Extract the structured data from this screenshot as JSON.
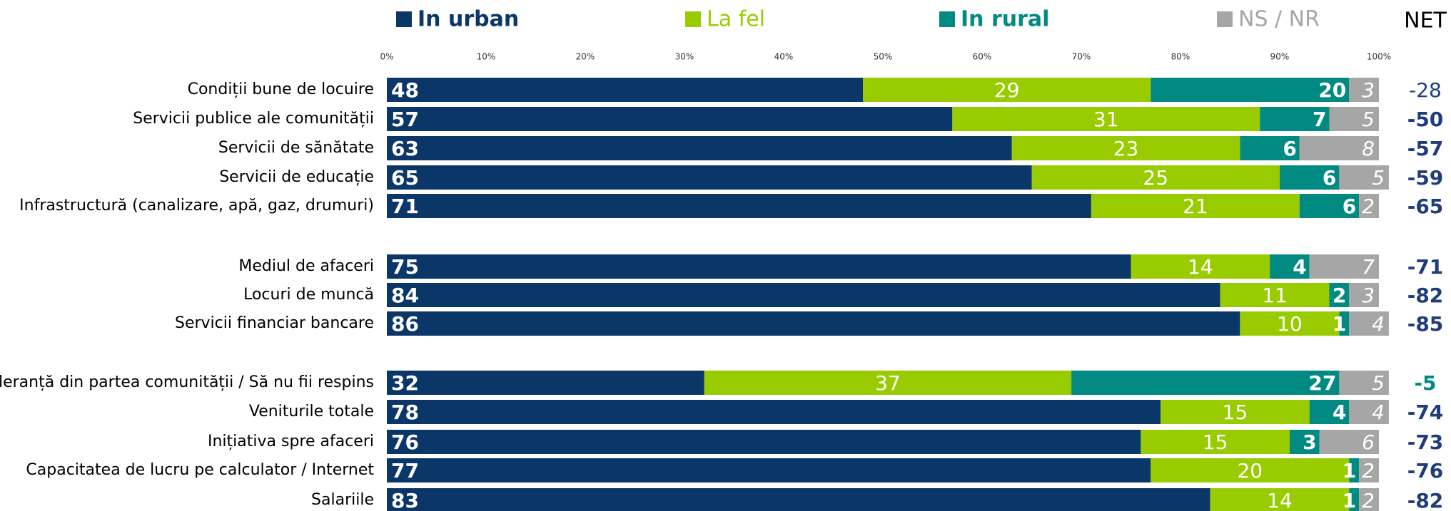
{
  "chart_data": {
    "type": "stacked-bar-horizontal",
    "categories": [
      "Condiții bune de locuire",
      "Servicii publice ale comunității",
      "Servicii de sănătate",
      "Servicii de educație",
      "Infrastructură (canalizare, apă, gaz, drumuri)",
      "Mediul de afaceri",
      "Locuri de muncă",
      "Servicii financiar bancare",
      "Toleranță din partea comunității / Să nu fii respins",
      "Veniturile totale",
      "Inițiativa spre afaceri",
      "Capacitatea de lucru pe calculator / Internet",
      "Salariile"
    ],
    "series": [
      {
        "name": "In urban",
        "color": "#0b3768",
        "values": [
          48,
          57,
          63,
          65,
          71,
          75,
          84,
          86,
          32,
          78,
          76,
          77,
          83
        ]
      },
      {
        "name": "La fel",
        "color": "#99cc00",
        "values": [
          29,
          31,
          23,
          25,
          21,
          14,
          11,
          10,
          37,
          15,
          15,
          20,
          14
        ]
      },
      {
        "name": "In rural",
        "color": "#008a82",
        "values": [
          20,
          7,
          6,
          6,
          6,
          4,
          2,
          1,
          27,
          4,
          3,
          1,
          1
        ]
      },
      {
        "name": "NS / NR",
        "color": "#a6a6a6",
        "values": [
          3,
          5,
          8,
          5,
          2,
          7,
          3,
          4,
          5,
          4,
          6,
          2,
          2
        ]
      }
    ],
    "net": {
      "name": "NET",
      "values": [
        -28,
        -50,
        -57,
        -59,
        -65,
        -71,
        -82,
        -85,
        -5,
        -74,
        -73,
        -76,
        -82
      ]
    },
    "xlim": [
      0,
      100
    ],
    "xticks": [
      {
        "value": 0,
        "label": "0%"
      },
      {
        "value": 10,
        "label": "10%"
      },
      {
        "value": 20,
        "label": "20%"
      },
      {
        "value": 30,
        "label": "30%"
      },
      {
        "value": 40,
        "label": "40%"
      },
      {
        "value": 50,
        "label": "50%"
      },
      {
        "value": 60,
        "label": "60%"
      },
      {
        "value": 70,
        "label": "70%"
      },
      {
        "value": 80,
        "label": "80%"
      },
      {
        "value": 90,
        "label": "90%"
      },
      {
        "value": 100,
        "label": "100%"
      }
    ]
  }
}
